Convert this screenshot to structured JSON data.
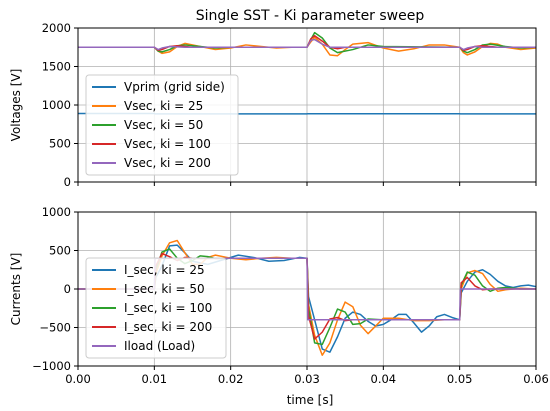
{
  "chart_data": [
    {
      "type": "line",
      "title": "Single SST - Ki parameter sweep",
      "xlabel": "",
      "ylabel": "Voltages [V]",
      "xlim": [
        0.0,
        0.06
      ],
      "ylim": [
        0,
        2000
      ],
      "yticks": [
        0,
        500,
        1000,
        1500,
        2000
      ],
      "ytick_labels": [
        "0",
        "500",
        "1000",
        "1500",
        "2000"
      ],
      "xticks": [
        0.0,
        0.01,
        0.02,
        0.03,
        0.04,
        0.05,
        0.06
      ],
      "xtick_labels": [],
      "grid": true,
      "legend_position": "lower-left",
      "series": [
        {
          "name": "Vprim (grid side)",
          "color": "#1f77b4",
          "x": [
            0.0,
            0.01,
            0.0101,
            0.03,
            0.0301,
            0.05,
            0.0501,
            0.06
          ],
          "y": [
            890,
            890,
            885,
            885,
            887,
            887,
            885,
            885
          ]
        },
        {
          "name": "Vsec, ki = 25",
          "color": "#ff7f0e",
          "x": [
            0.0,
            0.01,
            0.0105,
            0.011,
            0.012,
            0.013,
            0.014,
            0.016,
            0.018,
            0.02,
            0.022,
            0.024,
            0.026,
            0.028,
            0.03,
            0.0305,
            0.031,
            0.032,
            0.033,
            0.034,
            0.035,
            0.036,
            0.038,
            0.04,
            0.042,
            0.044,
            0.046,
            0.048,
            0.05,
            0.0505,
            0.051,
            0.052,
            0.053,
            0.054,
            0.055,
            0.056,
            0.058,
            0.06
          ],
          "y": [
            1750,
            1750,
            1700,
            1670,
            1690,
            1760,
            1800,
            1760,
            1720,
            1740,
            1780,
            1760,
            1740,
            1750,
            1750,
            1820,
            1880,
            1790,
            1650,
            1640,
            1720,
            1790,
            1810,
            1740,
            1700,
            1730,
            1780,
            1780,
            1750,
            1680,
            1650,
            1690,
            1760,
            1800,
            1790,
            1750,
            1720,
            1740
          ]
        },
        {
          "name": "Vsec, ki = 50",
          "color": "#2ca02c",
          "x": [
            0.0,
            0.01,
            0.0105,
            0.011,
            0.012,
            0.013,
            0.014,
            0.016,
            0.018,
            0.02,
            0.03,
            0.0305,
            0.031,
            0.032,
            0.033,
            0.034,
            0.036,
            0.038,
            0.04,
            0.05,
            0.0505,
            0.051,
            0.052,
            0.053,
            0.054,
            0.056,
            0.058,
            0.06
          ],
          "y": [
            1750,
            1750,
            1700,
            1690,
            1720,
            1770,
            1780,
            1760,
            1740,
            1750,
            1750,
            1850,
            1940,
            1870,
            1740,
            1680,
            1720,
            1780,
            1760,
            1750,
            1700,
            1680,
            1720,
            1780,
            1790,
            1760,
            1740,
            1750
          ]
        },
        {
          "name": "Vsec, ki = 100",
          "color": "#d62728",
          "x": [
            0.0,
            0.01,
            0.0105,
            0.011,
            0.012,
            0.013,
            0.014,
            0.015,
            0.03,
            0.0305,
            0.031,
            0.032,
            0.033,
            0.034,
            0.035,
            0.036,
            0.05,
            0.0505,
            0.051,
            0.052,
            0.053,
            0.054,
            0.055,
            0.06
          ],
          "y": [
            1750,
            1750,
            1710,
            1720,
            1760,
            1770,
            1760,
            1750,
            1750,
            1860,
            1900,
            1830,
            1750,
            1730,
            1750,
            1750,
            1750,
            1710,
            1720,
            1760,
            1770,
            1760,
            1750,
            1750
          ]
        },
        {
          "name": "Vsec, ki = 200",
          "color": "#9467bd",
          "x": [
            0.0,
            0.01,
            0.0105,
            0.011,
            0.012,
            0.013,
            0.014,
            0.03,
            0.0305,
            0.031,
            0.032,
            0.033,
            0.034,
            0.05,
            0.0505,
            0.051,
            0.052,
            0.053,
            0.06
          ],
          "y": [
            1750,
            1750,
            1720,
            1740,
            1760,
            1755,
            1750,
            1750,
            1840,
            1850,
            1790,
            1750,
            1750,
            1750,
            1720,
            1740,
            1760,
            1750,
            1750
          ]
        }
      ]
    },
    {
      "type": "line",
      "title": "",
      "xlabel": "time [s]",
      "ylabel": "Currents [V]",
      "xlim": [
        0.0,
        0.06
      ],
      "ylim": [
        -1000,
        1000
      ],
      "yticks": [
        -1000,
        -500,
        0,
        500,
        1000
      ],
      "ytick_labels": [
        "−1000",
        "−500",
        "0",
        "500",
        "1000"
      ],
      "xticks": [
        0.0,
        0.01,
        0.02,
        0.03,
        0.04,
        0.05,
        0.06
      ],
      "xtick_labels": [
        "0.00",
        "0.01",
        "0.02",
        "0.03",
        "0.04",
        "0.05",
        "0.06"
      ],
      "grid": true,
      "legend_position": "lower-left",
      "series": [
        {
          "name": "I_sec, ki = 25",
          "color": "#1f77b4",
          "x": [
            0.0,
            0.01,
            0.0102,
            0.011,
            0.012,
            0.013,
            0.014,
            0.015,
            0.017,
            0.019,
            0.021,
            0.023,
            0.025,
            0.027,
            0.029,
            0.03,
            0.0302,
            0.031,
            0.032,
            0.033,
            0.034,
            0.035,
            0.036,
            0.037,
            0.038,
            0.039,
            0.04,
            0.041,
            0.042,
            0.043,
            0.044,
            0.045,
            0.046,
            0.047,
            0.048,
            0.049,
            0.05,
            0.0502,
            0.051,
            0.052,
            0.053,
            0.054,
            0.055,
            0.056,
            0.057,
            0.058,
            0.059,
            0.06
          ],
          "y": [
            0,
            0,
            150,
            300,
            560,
            570,
            470,
            360,
            320,
            380,
            440,
            410,
            360,
            370,
            410,
            400,
            -100,
            -400,
            -780,
            -820,
            -620,
            -380,
            -300,
            -330,
            -420,
            -480,
            -460,
            -400,
            -330,
            -330,
            -440,
            -560,
            -480,
            -360,
            -330,
            -370,
            -400,
            -50,
            100,
            220,
            250,
            190,
            100,
            40,
            20,
            40,
            50,
            30
          ]
        },
        {
          "name": "I_sec, ki = 50",
          "color": "#ff7f0e",
          "x": [
            0.0,
            0.01,
            0.0102,
            0.011,
            0.012,
            0.013,
            0.014,
            0.015,
            0.016,
            0.017,
            0.018,
            0.02,
            0.022,
            0.024,
            0.026,
            0.028,
            0.03,
            0.0302,
            0.031,
            0.032,
            0.033,
            0.034,
            0.035,
            0.036,
            0.037,
            0.038,
            0.039,
            0.04,
            0.042,
            0.044,
            0.046,
            0.048,
            0.05,
            0.0502,
            0.051,
            0.052,
            0.053,
            0.054,
            0.055,
            0.056,
            0.058,
            0.06
          ],
          "y": [
            0,
            0,
            200,
            430,
            600,
            630,
            470,
            320,
            320,
            410,
            440,
            400,
            380,
            400,
            410,
            400,
            400,
            -200,
            -600,
            -860,
            -700,
            -400,
            -170,
            -230,
            -470,
            -580,
            -480,
            -380,
            -380,
            -410,
            -410,
            -400,
            -400,
            0,
            210,
            240,
            200,
            60,
            -30,
            -10,
            10,
            0
          ]
        },
        {
          "name": "I_sec, ki = 100",
          "color": "#2ca02c",
          "x": [
            0.0,
            0.01,
            0.0102,
            0.011,
            0.012,
            0.013,
            0.014,
            0.015,
            0.016,
            0.017,
            0.018,
            0.02,
            0.03,
            0.0302,
            0.031,
            0.032,
            0.033,
            0.034,
            0.035,
            0.036,
            0.037,
            0.038,
            0.04,
            0.05,
            0.0502,
            0.051,
            0.052,
            0.053,
            0.054,
            0.055,
            0.056,
            0.058,
            0.06
          ],
          "y": [
            0,
            0,
            250,
            480,
            520,
            400,
            330,
            370,
            430,
            420,
            395,
            400,
            400,
            -250,
            -700,
            -720,
            -500,
            -260,
            -300,
            -460,
            -450,
            -390,
            -400,
            -400,
            50,
            220,
            180,
            40,
            -30,
            10,
            20,
            0,
            0
          ]
        },
        {
          "name": "I_sec, ki = 200",
          "color": "#d62728",
          "x": [
            0.0,
            0.01,
            0.0102,
            0.011,
            0.012,
            0.013,
            0.014,
            0.015,
            0.016,
            0.02,
            0.03,
            0.0302,
            0.031,
            0.032,
            0.033,
            0.034,
            0.035,
            0.036,
            0.04,
            0.05,
            0.0502,
            0.051,
            0.052,
            0.053,
            0.054,
            0.06
          ],
          "y": [
            0,
            0,
            300,
            460,
            420,
            370,
            410,
            400,
            395,
            400,
            400,
            -350,
            -650,
            -560,
            -390,
            -370,
            -410,
            -400,
            -400,
            -400,
            80,
            150,
            40,
            -10,
            0,
            0
          ]
        },
        {
          "name": "Iload (Load)",
          "color": "#9467bd",
          "x": [
            0.0,
            0.01,
            0.0101,
            0.03,
            0.0301,
            0.05,
            0.0501,
            0.06
          ],
          "y": [
            0,
            0,
            400,
            400,
            -400,
            -400,
            0,
            0
          ]
        }
      ]
    }
  ]
}
